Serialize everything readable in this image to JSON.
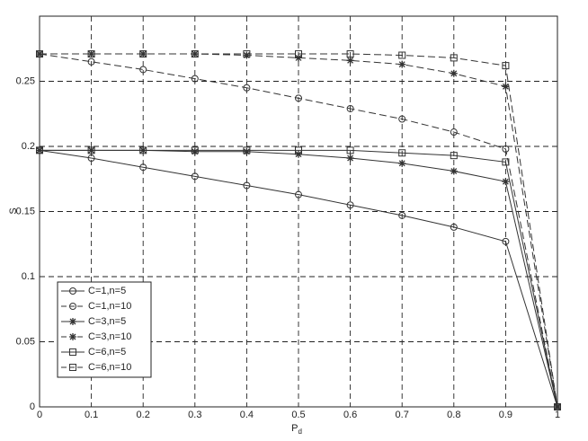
{
  "chart_data": {
    "type": "line",
    "x_label": "P",
    "x_label_sub": "d",
    "y_label": "S",
    "x": [
      0,
      0.1,
      0.2,
      0.3,
      0.4,
      0.5,
      0.6,
      0.7,
      0.8,
      0.9,
      1
    ],
    "xlim": [
      0,
      1
    ],
    "ylim": [
      0,
      0.3
    ],
    "xticks": [
      0,
      0.1,
      0.2,
      0.3,
      0.4,
      0.5,
      0.6,
      0.7,
      0.8,
      0.9,
      1
    ],
    "yticks": [
      0,
      0.05,
      0.1,
      0.15,
      0.2,
      0.25
    ],
    "grid": true,
    "legend_position": "lower left",
    "series": [
      {
        "name": "C=1,n=5",
        "color": "#333333",
        "marker": "circle",
        "dashed": false,
        "values": [
          0.197,
          0.191,
          0.184,
          0.177,
          0.17,
          0.163,
          0.155,
          0.147,
          0.138,
          0.127,
          0
        ]
      },
      {
        "name": "C=1,n=10",
        "color": "#333333",
        "marker": "circle",
        "dashed": true,
        "values": [
          0.271,
          0.265,
          0.259,
          0.252,
          0.245,
          0.237,
          0.229,
          0.221,
          0.211,
          0.198,
          0
        ]
      },
      {
        "name": "C=3,n=5",
        "color": "#333333",
        "marker": "star",
        "dashed": false,
        "values": [
          0.197,
          0.197,
          0.197,
          0.196,
          0.196,
          0.194,
          0.191,
          0.187,
          0.181,
          0.173,
          0
        ]
      },
      {
        "name": "C=3,n=10",
        "color": "#333333",
        "marker": "star",
        "dashed": true,
        "values": [
          0.271,
          0.271,
          0.271,
          0.271,
          0.27,
          0.268,
          0.266,
          0.263,
          0.256,
          0.246,
          0
        ]
      },
      {
        "name": "C=6,n=5",
        "color": "#333333",
        "marker": "square",
        "dashed": false,
        "values": [
          0.197,
          0.197,
          0.197,
          0.197,
          0.197,
          0.197,
          0.197,
          0.195,
          0.193,
          0.188,
          0
        ]
      },
      {
        "name": "C=6,n=10",
        "color": "#333333",
        "marker": "square",
        "dashed": true,
        "values": [
          0.271,
          0.271,
          0.271,
          0.271,
          0.271,
          0.271,
          0.271,
          0.27,
          0.268,
          0.262,
          0
        ]
      }
    ]
  }
}
